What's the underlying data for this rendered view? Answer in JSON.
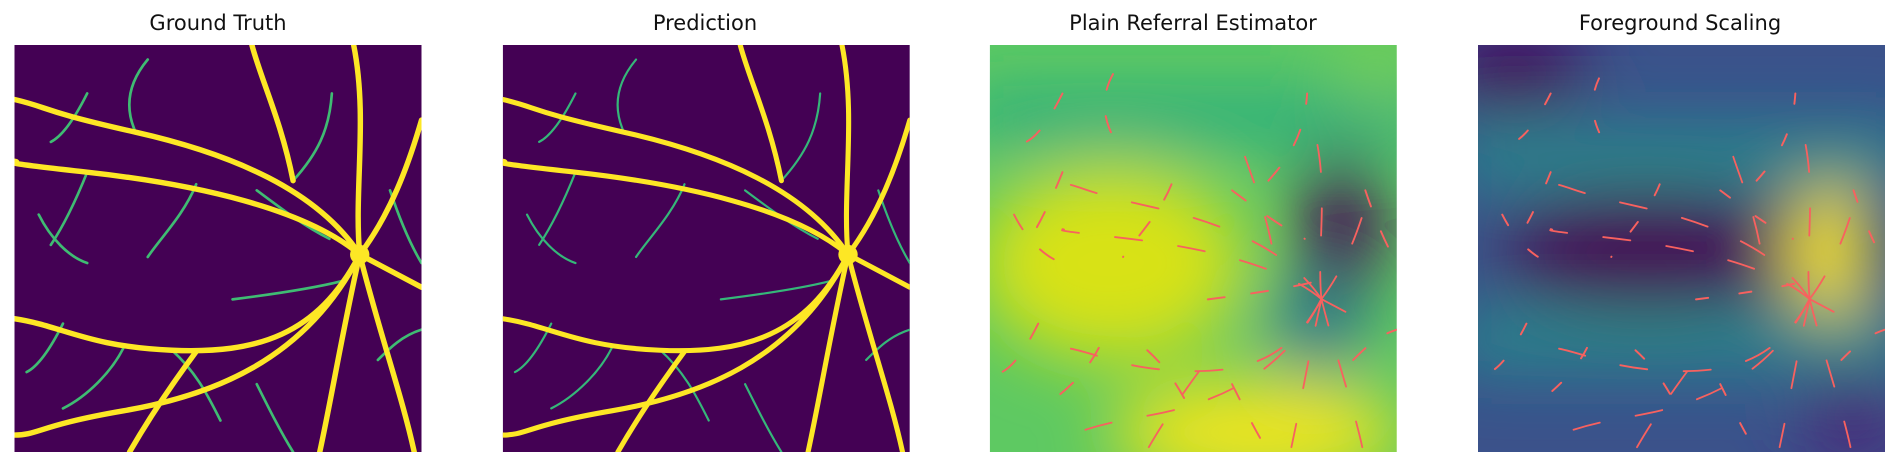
{
  "panels": [
    {
      "title": "Ground Truth"
    },
    {
      "title": "Prediction"
    },
    {
      "title": "Plain Referral Estimator"
    },
    {
      "title": "Foreground Scaling"
    }
  ]
}
